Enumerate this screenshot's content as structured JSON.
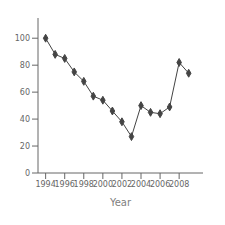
{
  "chart_data": {
    "type": "line",
    "x": [
      1994,
      1995,
      1996,
      1997,
      1998,
      1999,
      2000,
      2001,
      2002,
      2003,
      2004,
      2005,
      2006,
      2007,
      2008,
      2009
    ],
    "values": [
      100,
      88,
      85,
      75,
      68,
      57,
      54,
      46,
      38,
      27,
      50,
      45,
      44,
      49,
      82,
      74
    ],
    "xlabel": "Year",
    "color": "#444444",
    "marker": "diamond",
    "xlim": [
      1993.2,
      2010.5
    ],
    "ylim": [
      0,
      115
    ],
    "xticks": [
      1994,
      1996,
      1998,
      2000,
      2002,
      2004,
      2006,
      2008
    ],
    "yticks": [
      0,
      20,
      40,
      60,
      80,
      100
    ],
    "grid": false
  }
}
